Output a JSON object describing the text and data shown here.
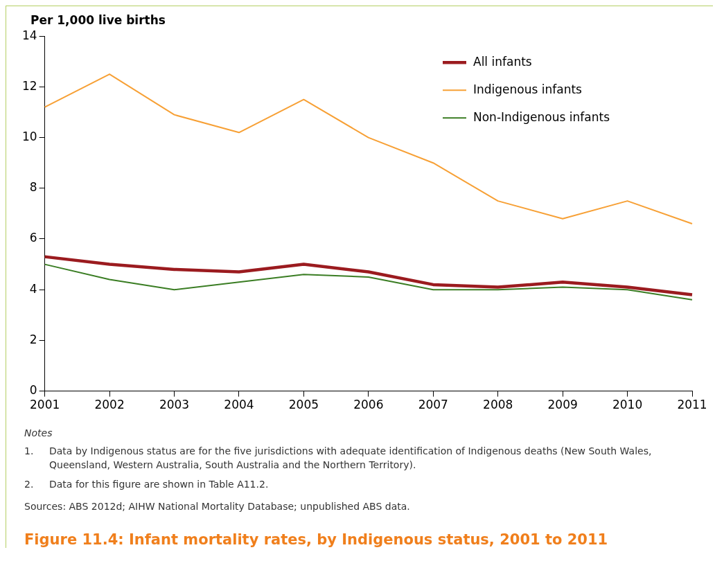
{
  "chart_data": {
    "type": "line",
    "title": "Figure 11.4: Infant mortality rates, by Indigenous status, 2001 to 2011",
    "ylabel": "Per 1,000 live births",
    "categories": [
      "2001",
      "2002",
      "2003",
      "2004",
      "2005",
      "2006",
      "2007",
      "2008",
      "2009",
      "2010",
      "2011"
    ],
    "series": [
      {
        "name": "All infants",
        "color": "#9b1b1f",
        "values": [
          5.3,
          5.0,
          4.8,
          4.7,
          5.0,
          4.7,
          4.2,
          4.1,
          4.3,
          4.1,
          3.8
        ]
      },
      {
        "name": "Indigenous infants",
        "color": "#f7a035",
        "values": [
          11.2,
          12.5,
          10.9,
          10.2,
          11.5,
          10.0,
          9.0,
          7.5,
          6.8,
          7.5,
          6.6
        ]
      },
      {
        "name": "Non-Indigenous infants",
        "color": "#3a7d23",
        "values": [
          5.0,
          4.4,
          4.0,
          4.3,
          4.6,
          4.5,
          4.0,
          4.0,
          4.1,
          4.0,
          3.6
        ]
      }
    ],
    "ylim": [
      0,
      14
    ],
    "yticks": [
      0,
      2,
      4,
      6,
      8,
      10,
      12,
      14
    ],
    "grid": false,
    "legend": "top right",
    "marker": "none",
    "line_style": "solid",
    "annotations": [
      "Notes",
      "1.\tData by Indigenous status are for the five jurisdictions with adequate identification of Indigenous deaths (New South Wales, Queensland, Western Australia, South Australia and the Northern Territory).",
      "2.\tData for this figure are shown in Table A11.2.",
      "Sources: ABS 2012d; AIHW National Mortality Database; unpublished ABS data."
    ]
  }
}
